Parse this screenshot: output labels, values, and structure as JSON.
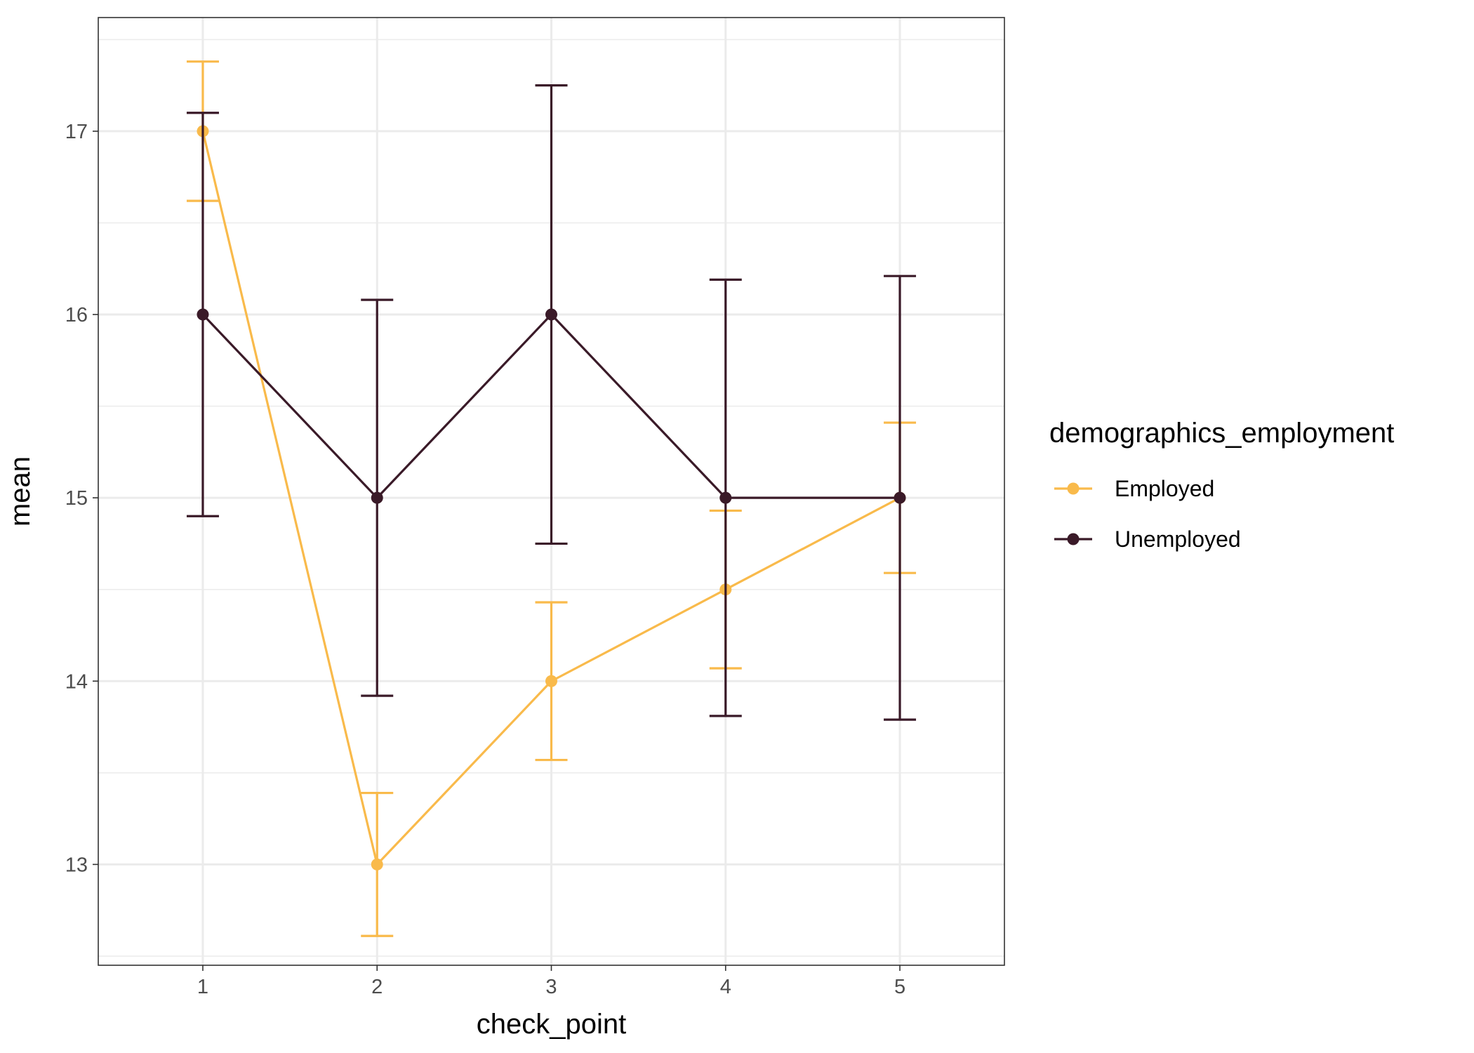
{
  "chart_data": {
    "type": "line",
    "xlabel": "check_point",
    "ylabel": "mean",
    "x": [
      1,
      2,
      3,
      4,
      5
    ],
    "xlim": [
      0.4,
      5.6
    ],
    "ylim": [
      12.45,
      17.62
    ],
    "y_ticks": [
      13,
      14,
      15,
      16,
      17
    ],
    "x_ticks": [
      1,
      2,
      3,
      4,
      5
    ],
    "grid": true,
    "legend": {
      "title": "demographics_employment",
      "position": "right"
    },
    "series": [
      {
        "name": "Employed",
        "color": "#F9BA4B",
        "values": [
          17,
          13,
          14,
          14.5,
          15
        ],
        "lower": [
          16.62,
          12.61,
          13.57,
          14.07,
          14.59
        ],
        "upper": [
          17.38,
          13.39,
          14.43,
          14.93,
          15.41
        ]
      },
      {
        "name": "Unemployed",
        "color": "#3A1A28",
        "values": [
          16,
          15,
          16,
          15,
          15
        ],
        "lower": [
          14.9,
          13.92,
          14.75,
          13.81,
          13.79
        ],
        "upper": [
          17.1,
          16.08,
          17.25,
          16.19,
          16.21
        ]
      }
    ]
  }
}
